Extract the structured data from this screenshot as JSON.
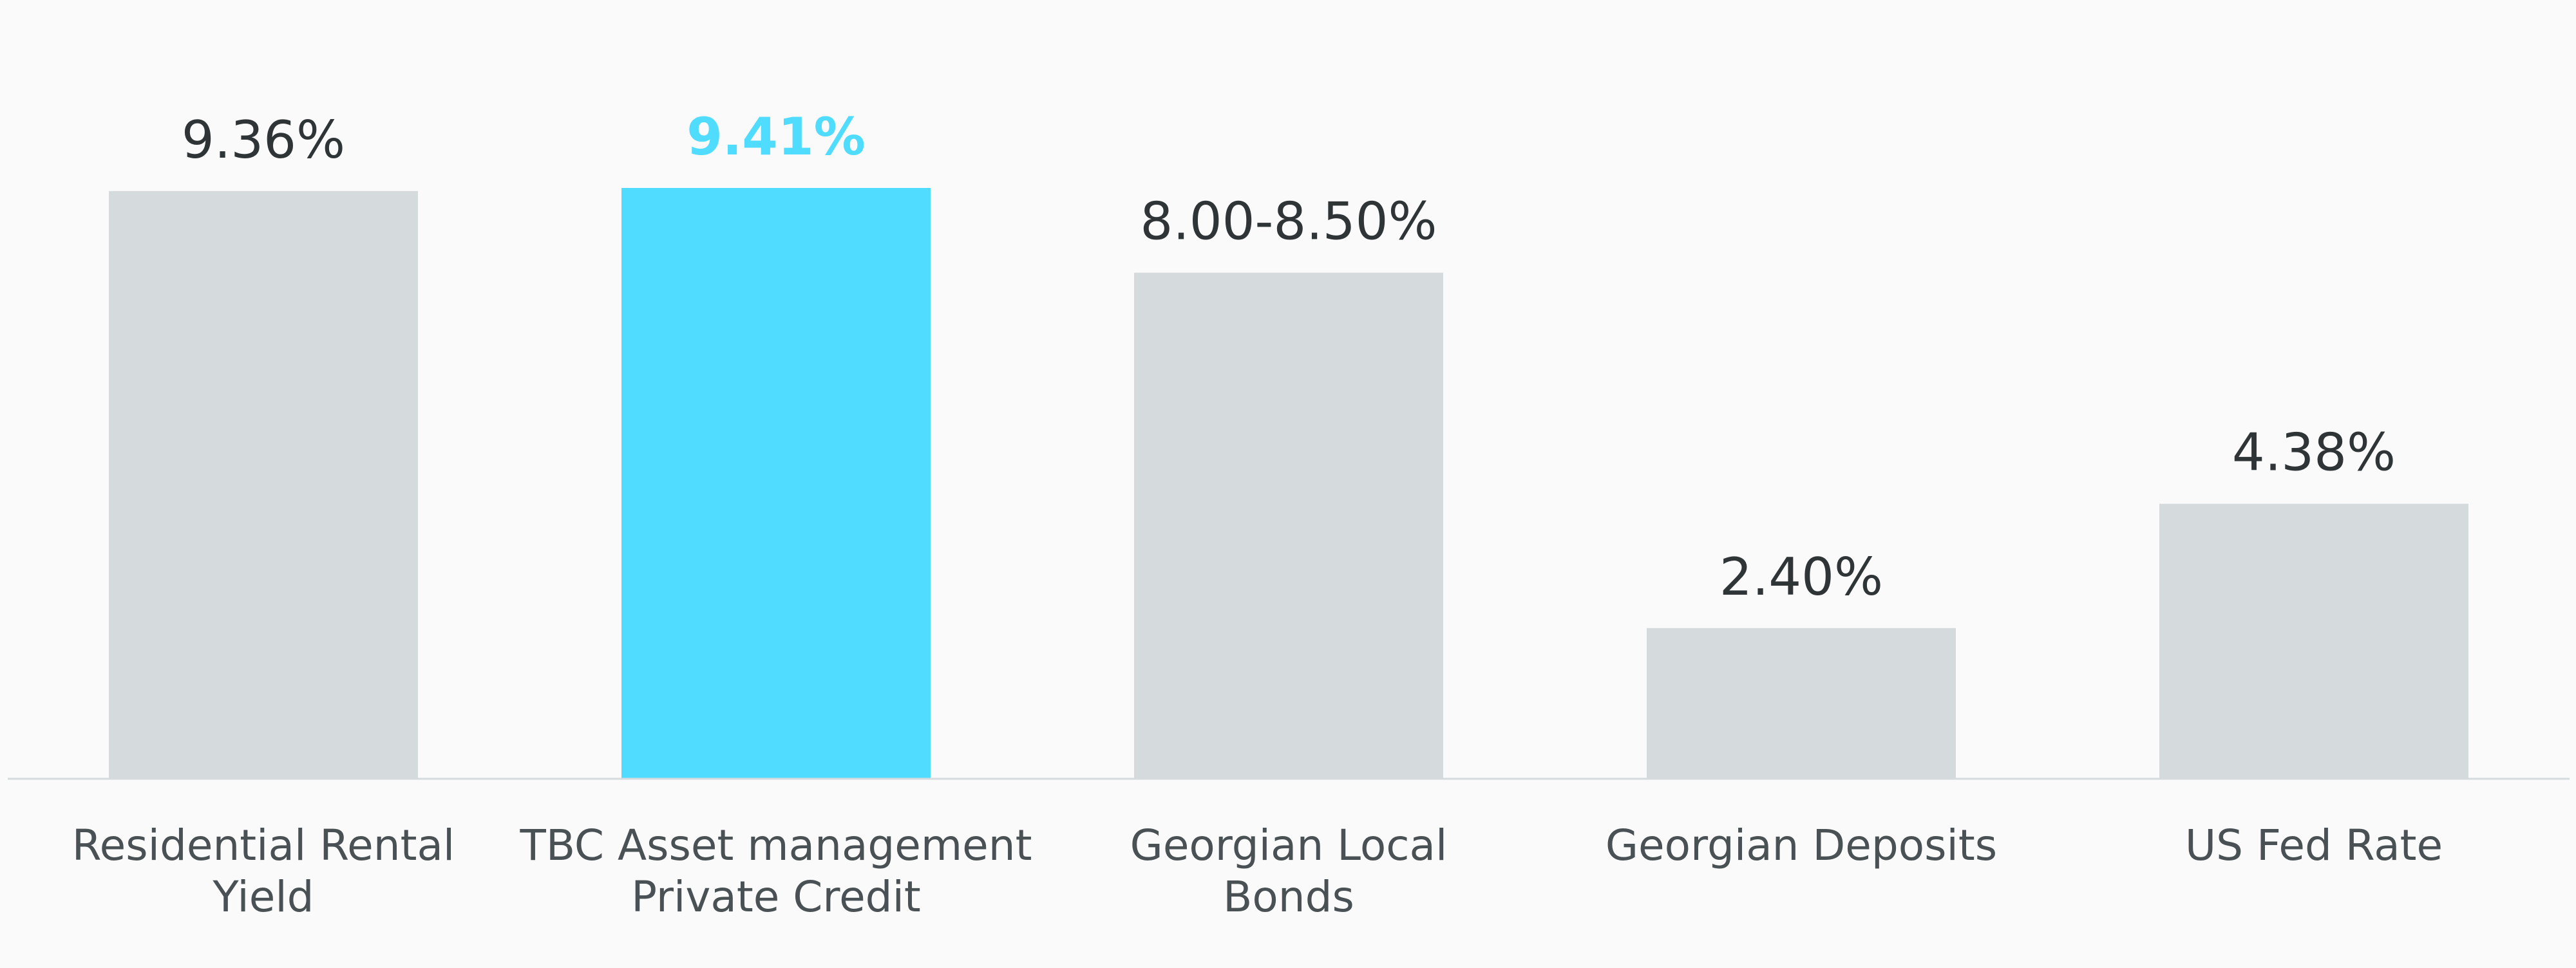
{
  "chart_data": {
    "type": "bar",
    "categories": [
      [
        "Residential Rental",
        "Yield"
      ],
      [
        "TBC Asset management",
        "Private Credit"
      ],
      [
        "Georgian Local",
        "Bonds"
      ],
      [
        "Georgian Deposits"
      ],
      [
        "US Fed Rate"
      ]
    ],
    "values": [
      9.36,
      9.41,
      8.06,
      2.4,
      4.38
    ],
    "value_labels": [
      "9.36%",
      "9.41%",
      "8.00-8.50%",
      "2.40%",
      "4.38%"
    ],
    "highlight_index": 1,
    "ylim": [
      0,
      9.41
    ],
    "grid": false,
    "colors": {
      "bar": "#d5dbdd",
      "highlight": "#4fdcff",
      "baseline": "#d5dbdd",
      "label_text": "#2f3437",
      "highlight_text": "#4fdcff",
      "category_text": "#4a5155"
    }
  }
}
